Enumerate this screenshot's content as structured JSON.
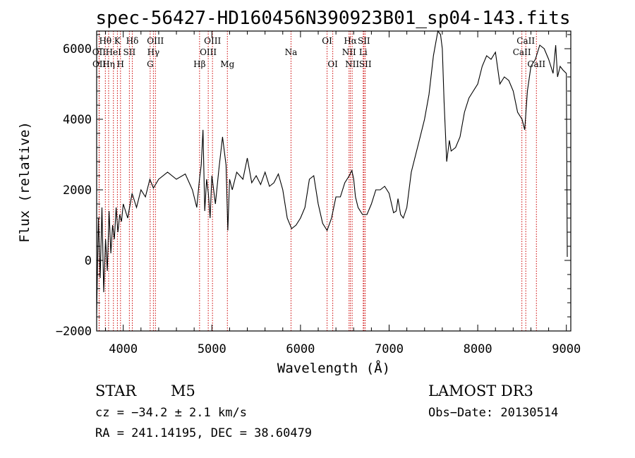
{
  "chart_data": {
    "type": "line",
    "title": "spec-56427-HD160456N390923B01_sp04-143.fits",
    "xlabel": "Wavelength (Å)",
    "ylabel": "Flux (relative)",
    "xlim": [
      3700,
      9050
    ],
    "ylim": [
      -2000,
      6500
    ],
    "xticks": [
      4000,
      5000,
      6000,
      7000,
      8000,
      9000
    ],
    "yticks": [
      -2000,
      0,
      2000,
      4000,
      6000
    ],
    "xtick_labels": [
      "4000",
      "5000",
      "6000",
      "7000",
      "8000",
      "9000"
    ],
    "ytick_labels": [
      "−2000",
      "0",
      "2000",
      "4000",
      "6000"
    ],
    "series": [
      {
        "name": "flux",
        "x": [
          3700,
          3720,
          3740,
          3760,
          3780,
          3800,
          3820,
          3840,
          3860,
          3880,
          3900,
          3920,
          3940,
          3960,
          3980,
          4000,
          4050,
          4100,
          4150,
          4200,
          4250,
          4300,
          4340,
          4400,
          4500,
          4600,
          4700,
          4780,
          4830,
          4860,
          4880,
          4900,
          4920,
          4940,
          4960,
          4980,
          5000,
          5040,
          5080,
          5120,
          5160,
          5180,
          5200,
          5230,
          5280,
          5350,
          5400,
          5450,
          5500,
          5550,
          5600,
          5650,
          5700,
          5750,
          5800,
          5850,
          5900,
          5950,
          6000,
          6050,
          6100,
          6150,
          6200,
          6250,
          6300,
          6350,
          6400,
          6450,
          6500,
          6550,
          6580,
          6600,
          6620,
          6650,
          6700,
          6750,
          6800,
          6850,
          6900,
          6950,
          7000,
          7050,
          7080,
          7100,
          7130,
          7160,
          7200,
          7250,
          7300,
          7350,
          7400,
          7450,
          7500,
          7550,
          7580,
          7600,
          7620,
          7650,
          7680,
          7700,
          7750,
          7800,
          7850,
          7900,
          7950,
          8000,
          8050,
          8100,
          8150,
          8200,
          8250,
          8300,
          8350,
          8400,
          8450,
          8500,
          8530,
          8560,
          8600,
          8650,
          8700,
          8750,
          8800,
          8850,
          8880,
          8900,
          8930,
          8960,
          9000,
          9010
        ],
        "y": [
          -1500,
          1200,
          -500,
          1500,
          -900,
          600,
          -300,
          1400,
          200,
          1000,
          600,
          1500,
          800,
          1300,
          1100,
          1600,
          1200,
          1900,
          1500,
          2000,
          1800,
          2300,
          2050,
          2300,
          2500,
          2300,
          2450,
          2000,
          1500,
          2300,
          2700,
          3700,
          1400,
          2300,
          1900,
          1200,
          2400,
          1600,
          2600,
          3500,
          2700,
          850,
          2300,
          2000,
          2500,
          2300,
          2900,
          2200,
          2400,
          2150,
          2500,
          2100,
          2200,
          2450,
          2000,
          1200,
          900,
          1000,
          1200,
          1500,
          2300,
          2400,
          1600,
          1050,
          850,
          1200,
          1800,
          1800,
          2200,
          2400,
          2550,
          2300,
          1800,
          1500,
          1300,
          1300,
          1600,
          2000,
          2000,
          2100,
          1900,
          1350,
          1400,
          1750,
          1300,
          1200,
          1500,
          2500,
          3000,
          3500,
          4000,
          4700,
          5800,
          6500,
          6400,
          6000,
          4500,
          2800,
          3400,
          3100,
          3200,
          3500,
          4200,
          4600,
          4800,
          5000,
          5500,
          5800,
          5700,
          5900,
          5000,
          5200,
          5100,
          4800,
          4200,
          4000,
          3700,
          4800,
          5500,
          5700,
          6100,
          6000,
          5700,
          5300,
          6100,
          5200,
          5500,
          5400,
          5300,
          100
        ]
      }
    ],
    "spectral_lines": [
      {
        "label": "Hθ",
        "wl": 3798,
        "row": 1
      },
      {
        "label": "OII",
        "wl": 3727,
        "row": 2
      },
      {
        "label": "OII",
        "wl": 3729,
        "row": 3
      },
      {
        "label": "Hη",
        "wl": 3835,
        "row": 3
      },
      {
        "label": "HeI",
        "wl": 3889,
        "row": 2
      },
      {
        "label": "K",
        "wl": 3934,
        "row": 1
      },
      {
        "label": "H",
        "wl": 3969,
        "row": 3
      },
      {
        "label": "SII",
        "wl": 4069,
        "row": 2
      },
      {
        "label": "Hδ",
        "wl": 4102,
        "row": 1
      },
      {
        "label": "G",
        "wl": 4304,
        "row": 3
      },
      {
        "label": "Hγ",
        "wl": 4340,
        "row": 2
      },
      {
        "label": "OIII",
        "wl": 4363,
        "row": 1
      },
      {
        "label": "Hβ",
        "wl": 4861,
        "row": 3
      },
      {
        "label": "OIII",
        "wl": 4959,
        "row": 2
      },
      {
        "label": "OIII",
        "wl": 5007,
        "row": 1
      },
      {
        "label": "Mg",
        "wl": 5175,
        "row": 3
      },
      {
        "label": "Na",
        "wl": 5893,
        "row": 2
      },
      {
        "label": "OI",
        "wl": 6300,
        "row": 1
      },
      {
        "label": "OI",
        "wl": 6364,
        "row": 3
      },
      {
        "label": "NII",
        "wl": 6548,
        "row": 2
      },
      {
        "label": "Hα",
        "wl": 6563,
        "row": 1
      },
      {
        "label": "NII",
        "wl": 6583,
        "row": 3
      },
      {
        "label": "Li",
        "wl": 6708,
        "row": 2
      },
      {
        "label": "SII",
        "wl": 6716,
        "row": 1
      },
      {
        "label": "SII",
        "wl": 6731,
        "row": 3
      },
      {
        "label": "CaII",
        "wl": 8498,
        "row": 2
      },
      {
        "label": "CaII",
        "wl": 8542,
        "row": 1
      },
      {
        "label": "CaII",
        "wl": 8662,
        "row": 3
      }
    ]
  },
  "footer": {
    "star_label": "STAR",
    "star_class": "M5",
    "cz": "cz = −34.2 ± 2.1 km/s",
    "radec": "RA = 241.14195, DEC =  38.60479",
    "survey": "LAMOST DR3",
    "obs_date": "Obs−Date: 20130514"
  },
  "colors": {
    "line_marker": "#cc0000",
    "spectrum": "#000000",
    "background": "#ffffff"
  }
}
